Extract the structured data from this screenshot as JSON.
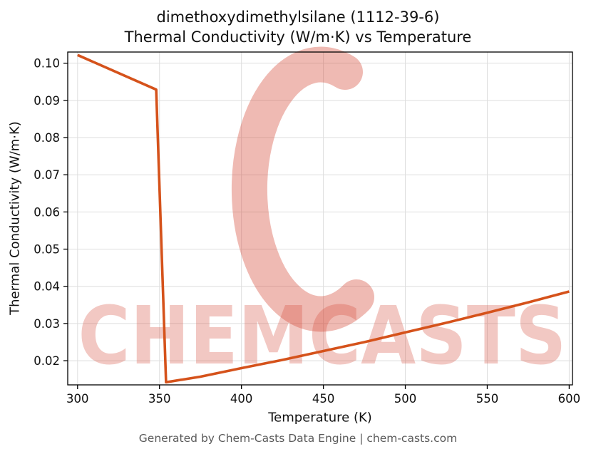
{
  "title": {
    "line1": "dimethoxydimethylsilane (1112-39-6)",
    "line2": "Thermal Conductivity (W/m·K) vs Temperature"
  },
  "axes": {
    "xlabel": "Temperature (K)",
    "ylabel": "Thermal Conductivity (W/m·K)"
  },
  "footer": {
    "text": "Generated by Chem-Casts Data Engine | chem-casts.com"
  },
  "watermark": {
    "text": "CHEMCASTS",
    "logo": "chemcasts-c-swirl-logo",
    "color": "#d54a37",
    "text_opacity": 0.3,
    "logo_opacity": 0.38
  },
  "chart_data": {
    "type": "line",
    "title": "dimethoxydimethylsilane (1112-39-6)\nThermal Conductivity (W/m·K) vs Temperature",
    "xlabel": "Temperature (K)",
    "ylabel": "Thermal Conductivity (W/m·K)",
    "xlim": [
      294,
      602
    ],
    "ylim": [
      0.0135,
      0.103
    ],
    "xticks": [
      300,
      350,
      400,
      450,
      500,
      550,
      600
    ],
    "xtick_labels": [
      "300",
      "350",
      "400",
      "450",
      "500",
      "550",
      "600"
    ],
    "yticks": [
      0.02,
      0.03,
      0.04,
      0.05,
      0.06,
      0.07,
      0.08,
      0.09,
      0.1
    ],
    "ytick_labels": [
      "0.02",
      "0.03",
      "0.04",
      "0.05",
      "0.06",
      "0.07",
      "0.08",
      "0.09",
      "0.10"
    ],
    "grid": true,
    "legend": "none",
    "line_color": "#d5521b",
    "line_width": 3.6,
    "series": [
      {
        "name": "thermal-conductivity",
        "points": [
          [
            300,
            0.1022
          ],
          [
            348,
            0.0929
          ],
          [
            354,
            0.0142
          ],
          [
            375,
            0.0157
          ],
          [
            400,
            0.018
          ],
          [
            425,
            0.0202
          ],
          [
            450,
            0.0226
          ],
          [
            475,
            0.025
          ],
          [
            500,
            0.0276
          ],
          [
            525,
            0.0302
          ],
          [
            550,
            0.0329
          ],
          [
            575,
            0.0357
          ],
          [
            600,
            0.0386
          ]
        ]
      }
    ]
  }
}
